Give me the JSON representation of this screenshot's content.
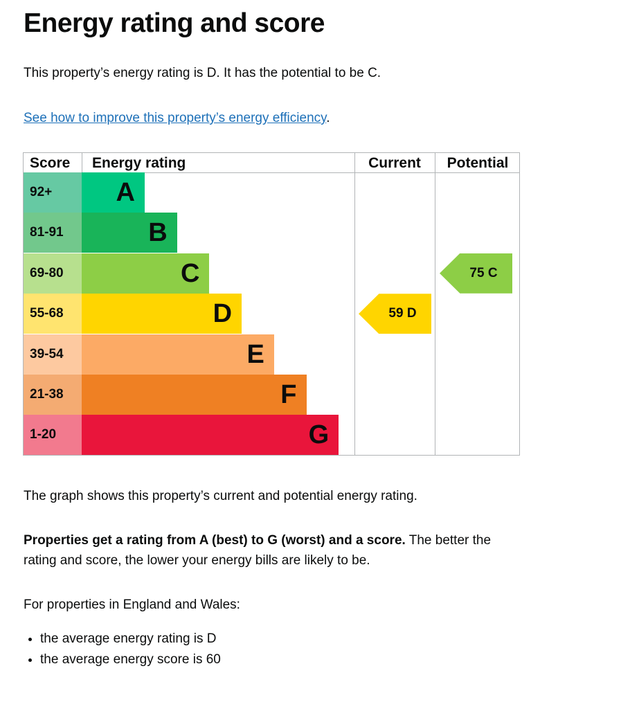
{
  "title": "Energy rating and score",
  "intro": "This property’s energy rating is D. It has the potential to be C.",
  "improve_link": "See how to improve this property’s energy efficiency",
  "improve_link_suffix": ".",
  "chart_data": {
    "type": "table",
    "headers": {
      "score": "Score",
      "rating": "Energy rating",
      "current": "Current",
      "potential": "Potential"
    },
    "bands": [
      {
        "score": "92+",
        "letter": "A",
        "color": "#00c781",
        "light": "#66c9a3"
      },
      {
        "score": "81-91",
        "letter": "B",
        "color": "#19b459",
        "light": "#72c88c"
      },
      {
        "score": "69-80",
        "letter": "C",
        "color": "#8dce46",
        "light": "#b7e08e"
      },
      {
        "score": "55-68",
        "letter": "D",
        "color": "#ffd500",
        "light": "#ffe46f"
      },
      {
        "score": "39-54",
        "letter": "E",
        "color": "#fcaa65",
        "light": "#fdc9a0"
      },
      {
        "score": "21-38",
        "letter": "F",
        "color": "#ef8023",
        "light": "#f4ab72"
      },
      {
        "score": "1-20",
        "letter": "G",
        "color": "#e9153b",
        "light": "#f27a8e"
      }
    ],
    "current": {
      "score": 59,
      "letter": "D",
      "label": "59  D",
      "color": "#ffd500"
    },
    "potential": {
      "score": 75,
      "letter": "C",
      "label": "75  C",
      "color": "#8dce46"
    }
  },
  "graph_note": "The graph shows this property’s current and potential energy rating.",
  "ratings_bold": "Properties get a rating from A (best) to G (worst) and a score.",
  "ratings_rest": " The better the rating and score, the lower your energy bills are likely to be.",
  "region_intro": "For properties in England and Wales:",
  "averages": [
    "the average energy rating is D",
    "the average energy score is 60"
  ]
}
